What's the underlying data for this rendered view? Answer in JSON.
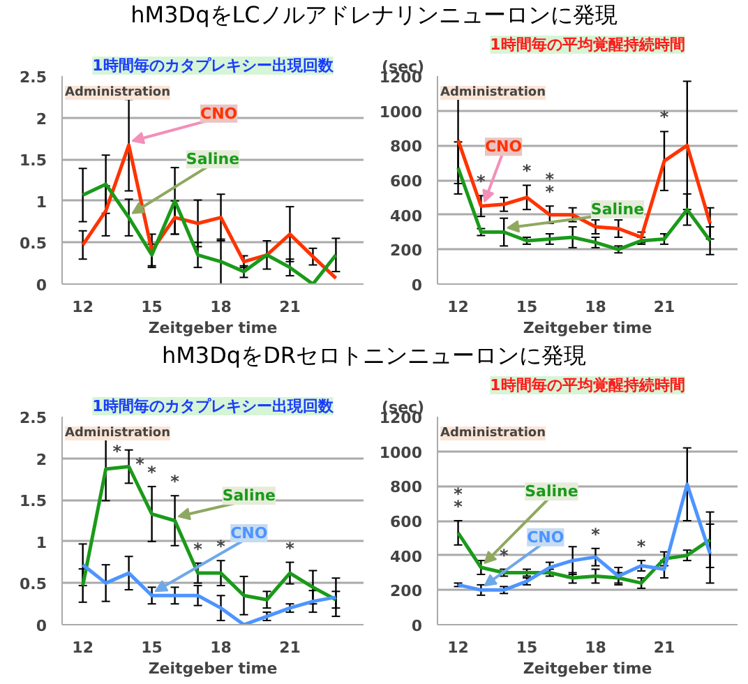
{
  "chart_data": [
    {
      "type": "line",
      "title": "hM3DqをLCノルアドレナリンニューロンに発現",
      "subtitle": "1時間毎のカタプレキシー出現回数",
      "xlabel": "Zeitgeber time",
      "x": [
        12,
        13,
        14,
        15,
        16,
        17,
        18,
        19,
        20,
        21,
        22,
        23
      ],
      "xlim": [
        11.1,
        24.2
      ],
      "xticks": [
        12,
        15,
        18,
        21
      ],
      "ylim": [
        0,
        2.5
      ],
      "yticks": [
        0,
        0.5,
        1,
        1.5,
        2,
        2.5
      ],
      "grid": "y",
      "marker": "none",
      "line_style": "solid",
      "series": [
        {
          "name": "CNO",
          "color": "#ff3300",
          "values": [
            0.47,
            0.88,
            1.67,
            0.4,
            0.8,
            0.73,
            0.8,
            0.27,
            0.35,
            0.6,
            0.33,
            0.07
          ],
          "errors": [
            0.17,
            0.3,
            0.55,
            0.2,
            0.2,
            0.28,
            0.28,
            0.07,
            null,
            0.33,
            0.1,
            null
          ]
        },
        {
          "name": "Saline",
          "color": "#1a9a1a",
          "values": [
            1.07,
            1.2,
            0.8,
            0.35,
            1.0,
            0.35,
            0.27,
            0.15,
            0.35,
            0.2,
            0.0,
            0.35
          ],
          "errors": [
            0.32,
            0.35,
            0.22,
            0.13,
            0.4,
            0.15,
            0.27,
            0.07,
            0.17,
            0.1,
            null,
            0.2
          ]
        }
      ],
      "annotations": [
        "Administration"
      ]
    },
    {
      "type": "line",
      "subtitle": "1時間毎の平均覚醒持続時間",
      "ylabel": "(sec)",
      "xlabel": "Zeitgeber time",
      "x": [
        12,
        13,
        14,
        15,
        16,
        17,
        18,
        19,
        20,
        21,
        22,
        23
      ],
      "xlim": [
        11.1,
        24.2
      ],
      "xticks": [
        12,
        15,
        18,
        21
      ],
      "ylim": [
        0,
        1200
      ],
      "yticks": [
        0,
        200,
        400,
        600,
        800,
        1000,
        1200
      ],
      "grid": "y",
      "marker": "none",
      "line_style": "solid",
      "series": [
        {
          "name": "CNO",
          "color": "#ff3300",
          "values": [
            830,
            450,
            460,
            500,
            400,
            400,
            330,
            320,
            270,
            710,
            800,
            350
          ],
          "errors": [
            250,
            60,
            40,
            70,
            50,
            40,
            40,
            50,
            30,
            170,
            370,
            90
          ]
        },
        {
          "name": "Saline",
          "color": "#1a9a1a",
          "values": [
            670,
            300,
            300,
            250,
            260,
            270,
            240,
            200,
            250,
            260,
            430,
            250
          ],
          "errors": [
            150,
            20,
            80,
            20,
            30,
            60,
            30,
            20,
            20,
            30,
            90,
            80
          ]
        }
      ],
      "annotations": [
        "Administration",
        {
          "text": "*",
          "x": 13,
          "y": 450
        },
        {
          "text": "*",
          "x": 15,
          "y": 500
        },
        {
          "text": "*",
          "x": 16,
          "y": 400
        },
        {
          "text": "*",
          "x": 16,
          "y": 400
        },
        {
          "text": "*",
          "x": 21,
          "y": 710
        }
      ]
    },
    {
      "type": "line",
      "title": "hM3DqをDRセロトニンニューロンに発現",
      "subtitle": "1時間毎のカタプレキシー出現回数",
      "xlabel": "Zeitgeber time",
      "x": [
        12,
        13,
        14,
        15,
        16,
        17,
        18,
        19,
        20,
        21,
        22,
        23
      ],
      "xlim": [
        11.1,
        24.2
      ],
      "xticks": [
        12,
        15,
        18,
        21
      ],
      "ylim": [
        0,
        2.5
      ],
      "yticks": [
        0,
        0.5,
        1,
        1.5,
        2,
        2.5
      ],
      "grid": "y",
      "marker": "none",
      "line_style": "solid",
      "series": [
        {
          "name": "Saline",
          "color": "#1a9a1a",
          "values": [
            0.47,
            1.87,
            1.9,
            1.33,
            1.25,
            0.62,
            0.62,
            0.35,
            0.3,
            0.62,
            0.45,
            0.3
          ],
          "errors": [
            0.2,
            0.38,
            0.2,
            0.33,
            0.3,
            0.12,
            0.15,
            0.23,
            0.1,
            0.13,
            0.2,
            0.1
          ]
        },
        {
          "name": "CNO",
          "color": "#4d94ff",
          "values": [
            0.72,
            0.5,
            0.62,
            0.35,
            0.35,
            0.35,
            0.2,
            0.0,
            0.1,
            0.2,
            0.28,
            0.33
          ],
          "errors": [
            0.25,
            0.22,
            0.2,
            0.1,
            0.1,
            0.12,
            0.15,
            null,
            0.05,
            0.05,
            0.13,
            0.23
          ]
        }
      ],
      "annotations": [
        "Administration",
        {
          "text": "*",
          "x": 13,
          "y": 1.87
        },
        {
          "text": "*",
          "x": 14,
          "y": 1.9
        },
        {
          "text": "*",
          "x": 15,
          "y": 1.33
        },
        {
          "text": "*",
          "x": 16,
          "y": 1.25
        },
        {
          "text": "*",
          "x": 17,
          "y": 0.62
        },
        {
          "text": "*",
          "x": 18,
          "y": 0.62
        },
        {
          "text": "*",
          "x": 21,
          "y": 0.62
        }
      ]
    },
    {
      "type": "line",
      "subtitle": "1時間毎の平均覚醒持続時間",
      "ylabel": "(sec)",
      "xlabel": "Zeitgeber time",
      "x": [
        12,
        13,
        14,
        15,
        16,
        17,
        18,
        19,
        20,
        21,
        22,
        23
      ],
      "xlim": [
        11.1,
        24.2
      ],
      "xticks": [
        12,
        15,
        18,
        21
      ],
      "ylim": [
        0,
        1200
      ],
      "yticks": [
        0,
        200,
        400,
        600,
        800,
        1000,
        1200
      ],
      "grid": "y",
      "marker": "none",
      "line_style": "solid",
      "series": [
        {
          "name": "Saline",
          "color": "#1a9a1a",
          "values": [
            530,
            330,
            300,
            300,
            300,
            270,
            280,
            270,
            240,
            380,
            400,
            490
          ],
          "errors": [
            70,
            40,
            20,
            20,
            20,
            30,
            40,
            30,
            30,
            40,
            30,
            160
          ]
        },
        {
          "name": "CNO",
          "color": "#4d94ff",
          "values": [
            230,
            200,
            200,
            250,
            330,
            370,
            390,
            280,
            340,
            320,
            810,
            410
          ],
          "errors": [
            10,
            30,
            20,
            20,
            30,
            80,
            50,
            50,
            30,
            50,
            210,
            170
          ]
        }
      ],
      "annotations": [
        "Administration",
        {
          "text": "*",
          "x": 12,
          "y": 530
        },
        {
          "text": "*",
          "x": 12,
          "y": 530
        },
        {
          "text": "*",
          "x": 14,
          "y": 300
        },
        {
          "text": "*",
          "x": 18,
          "y": 390
        },
        {
          "text": "*",
          "x": 20,
          "y": 340
        }
      ]
    }
  ]
}
